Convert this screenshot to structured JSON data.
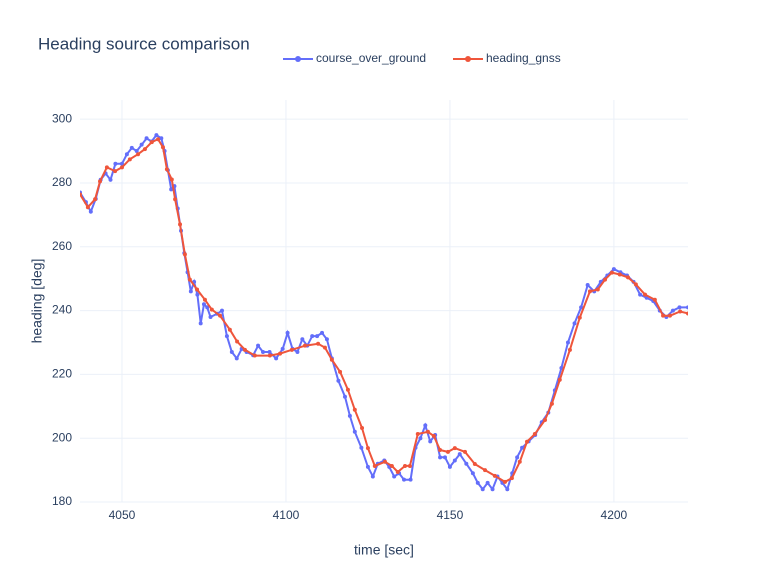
{
  "chart_data": {
    "type": "line",
    "title": "Heading source comparison",
    "x_label": "time [sec]",
    "y_label": "heading [deg]",
    "xlim": [
      4037.2,
      4222.6
    ],
    "ylim": [
      180,
      306
    ],
    "xticks": [
      4050,
      4100,
      4150,
      4200
    ],
    "yticks": [
      180,
      200,
      220,
      240,
      260,
      280,
      300
    ],
    "grid": true,
    "legend": "top",
    "series": [
      {
        "name": "course_over_ground",
        "color": "#636efa",
        "x": [
          4037.2,
          4039,
          4040.5,
          4042,
          4043.5,
          4045,
          4046.5,
          4048,
          4050,
          4051.5,
          4053,
          4054.5,
          4056,
          4057.5,
          4059,
          4060.5,
          4062,
          4063,
          4064,
          4065,
          4066,
          4067,
          4068,
          4069,
          4070,
          4071,
          4072,
          4073,
          4074,
          4075,
          4076,
          4077,
          4079,
          4080.5,
          4082,
          4083.5,
          4085,
          4086.5,
          4088,
          4090,
          4091.5,
          4093,
          4095,
          4097,
          4099,
          4100.5,
          4102,
          4103.5,
          4105,
          4106.5,
          4108,
          4109.5,
          4111,
          4112.5,
          4114,
          4116,
          4118,
          4119.5,
          4121,
          4123,
          4125,
          4126.5,
          4128,
          4130,
          4131.5,
          4133,
          4134.5,
          4136,
          4138,
          4139.5,
          4141,
          4142.5,
          4144,
          4145.5,
          4147,
          4148.5,
          4150,
          4151.5,
          4153,
          4155,
          4157,
          4158.5,
          4160,
          4161.5,
          4163,
          4164.5,
          4166,
          4167.5,
          4169,
          4170.5,
          4172,
          4174,
          4176,
          4178,
          4180,
          4182,
          4184,
          4186,
          4188,
          4190,
          4192,
          4194,
          4196,
          4198,
          4200,
          4202,
          4204,
          4206,
          4208,
          4210,
          4212,
          4214,
          4216,
          4218,
          4220,
          4222.6
        ],
        "values": [
          277,
          274,
          271,
          275,
          281,
          283,
          281,
          286,
          286,
          289,
          291,
          290,
          292,
          294,
          293,
          295,
          294,
          290,
          284,
          278,
          279,
          272,
          265,
          258,
          252,
          246,
          249,
          245,
          236,
          242,
          241,
          238,
          239,
          240,
          232,
          227,
          225,
          228,
          227,
          226,
          229,
          227,
          227,
          225,
          228,
          233,
          228,
          227,
          231,
          229,
          232,
          232,
          233,
          231,
          225,
          218,
          213,
          207,
          202,
          197,
          191,
          188,
          192,
          193,
          191,
          188,
          189,
          187,
          187,
          197,
          200,
          204,
          199,
          201,
          194,
          194,
          191,
          193,
          195,
          192,
          189,
          186,
          184,
          186,
          184,
          188,
          186,
          184,
          189,
          194,
          197,
          199,
          201,
          205,
          208,
          215,
          222,
          230,
          236,
          241,
          248,
          246,
          249,
          251,
          253,
          252,
          251,
          249,
          245,
          244,
          243,
          240,
          238,
          240,
          241,
          241
        ]
      },
      {
        "name": "heading_gnss",
        "color": "#ef553b",
        "x": [
          4037.2,
          4039.6,
          4041.8,
          4043.3,
          4045.4,
          4047.9,
          4050,
          4052.4,
          4054.9,
          4057,
          4059.1,
          4061,
          4062.5,
          4063.7,
          4065.2,
          4066.2,
          4067.7,
          4069.2,
          4070.7,
          4072.9,
          4075.3,
          4077.4,
          4079.9,
          4082.9,
          4085.1,
          4087.5,
          4090.5,
          4095.1,
          4098.2,
          4101.8,
          4105.8,
          4109.8,
          4111.9,
          4114,
          4116.5,
          4118.9,
          4121,
          4123.2,
          4125,
          4127.1,
          4130.2,
          4132.3,
          4134.1,
          4136.3,
          4137.8,
          4140.2,
          4143.3,
          4145.1,
          4147,
          4149.4,
          4151.5,
          4154.6,
          4157.6,
          4160.7,
          4163.7,
          4166.8,
          4168.9,
          4171.3,
          4173.5,
          4175.9,
          4179,
          4181.1,
          4183.5,
          4186.6,
          4189.6,
          4192.7,
          4195.1,
          4197.3,
          4199.4,
          4201.8,
          4204.3,
          4206.7,
          4209.5,
          4212.5,
          4215,
          4217.1,
          4220.2,
          4222.6
        ],
        "values": [
          276.4,
          272.4,
          274.9,
          280.5,
          284.9,
          283.7,
          284.9,
          287.4,
          289,
          290.6,
          292.8,
          293.7,
          291.2,
          284.3,
          281.1,
          274.9,
          267,
          257.6,
          249.7,
          246.6,
          243.4,
          240.3,
          238.4,
          234,
          230.3,
          227.7,
          225.9,
          225.9,
          226.5,
          227.7,
          229,
          229.6,
          228.4,
          224.6,
          220.8,
          215.2,
          208.9,
          203.2,
          196.9,
          191.3,
          192.6,
          191.3,
          189.4,
          191.3,
          191.3,
          201.3,
          202,
          200.7,
          196.3,
          195.7,
          196.9,
          195.7,
          191.9,
          190,
          188.2,
          186.3,
          187.5,
          192.6,
          198.9,
          201.3,
          205.7,
          210.8,
          218.3,
          227.7,
          237.8,
          246,
          246.6,
          249.7,
          251.9,
          251.3,
          250.4,
          248.2,
          245,
          243.4,
          238.4,
          238.4,
          239.7,
          239.1
        ]
      }
    ]
  }
}
